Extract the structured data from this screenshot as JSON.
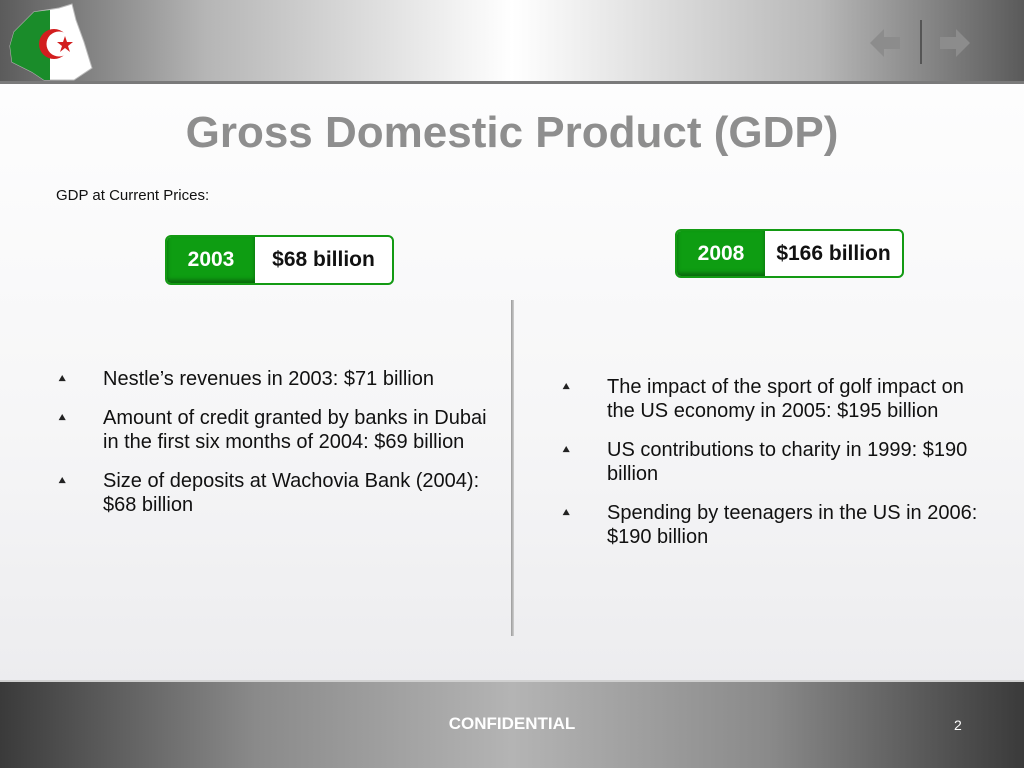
{
  "header": {
    "logo_icon": "algeria-map-flag-icon",
    "nav_prev_icon": "arrow-left-icon",
    "nav_next_icon": "arrow-right-icon"
  },
  "slide": {
    "title": "Gross Domestic Product (GDP)",
    "subtitle": "GDP at Current Prices:",
    "gdp_boxes": [
      {
        "year": "2003",
        "value": "$68 billion"
      },
      {
        "year": "2008",
        "value": "$166 billion"
      }
    ],
    "left_bullets": [
      "Nestle’s revenues in 2003: $71 billion",
      "Amount of credit granted by banks in Dubai in the first six months of 2004: $69 billion",
      "Size of deposits at Wachovia Bank (2004): $68 billion"
    ],
    "right_bullets": [
      "The impact of the sport of golf impact on the US economy in 2005: $195 billion",
      "US contributions to charity in 1999: $190 billion",
      "Spending by teenagers in the US in 2006: $190 billion"
    ],
    "bullet_glyph": "⯅"
  },
  "footer": {
    "label": "CONFIDENTIAL",
    "page_number": "2"
  },
  "colors": {
    "accent_green": "#0e9d12",
    "title_gray": "#8e8e8e"
  }
}
